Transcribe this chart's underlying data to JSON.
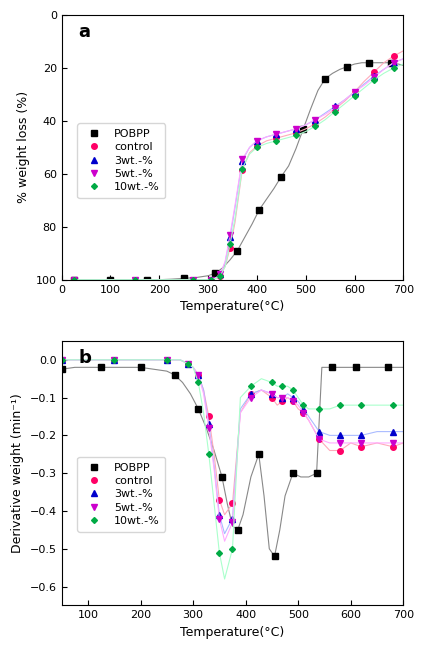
{
  "tga": {
    "title": "a",
    "xlabel": "Temperature(°C)",
    "ylabel": "% weight loss (%)",
    "xlim": [
      0,
      700
    ],
    "ylim": [
      100,
      0
    ],
    "yticks": [
      0,
      20,
      40,
      60,
      80,
      100
    ],
    "xticks": [
      0,
      100,
      200,
      300,
      400,
      500,
      600,
      700
    ],
    "series": {
      "POBPP": {
        "color": "#888888",
        "mcolor": "#000000",
        "marker": "s",
        "markersize": 4,
        "linewidth": 0.8,
        "temp": [
          25,
          50,
          75,
          100,
          125,
          150,
          175,
          200,
          225,
          250,
          275,
          300,
          315,
          330,
          345,
          360,
          375,
          390,
          405,
          420,
          435,
          450,
          465,
          480,
          495,
          510,
          525,
          540,
          555,
          570,
          585,
          600,
          615,
          630,
          645,
          660,
          675,
          690,
          700
        ],
        "weight": [
          100,
          100,
          100,
          100,
          100,
          100,
          100,
          100,
          99.8,
          99.5,
          99.2,
          98.5,
          97.5,
          95.5,
          92.5,
          89.0,
          84.0,
          79.0,
          73.5,
          69.5,
          65.5,
          61.0,
          57.0,
          50.5,
          43.0,
          35.5,
          28.5,
          24.0,
          22.0,
          20.5,
          19.5,
          18.5,
          18.0,
          18.0,
          18.0,
          18.0,
          18.0,
          18.5,
          19.0
        ]
      },
      "control": {
        "color": "#ffaabb",
        "mcolor": "#ff0066",
        "marker": "o",
        "markersize": 4,
        "linewidth": 0.8,
        "temp": [
          25,
          75,
          150,
          225,
          270,
          290,
          305,
          315,
          325,
          335,
          345,
          355,
          370,
          385,
          400,
          420,
          440,
          460,
          480,
          500,
          520,
          540,
          560,
          580,
          600,
          620,
          640,
          660,
          680,
          700
        ],
        "weight": [
          100,
          100,
          100,
          100,
          100,
          100,
          100,
          99.5,
          98.5,
          95.0,
          88.0,
          78.5,
          58.5,
          52.0,
          49.5,
          47.5,
          46.5,
          45.5,
          44.5,
          43.0,
          41.0,
          38.5,
          35.5,
          32.5,
          29.0,
          25.0,
          21.5,
          18.0,
          15.5,
          13.5
        ]
      },
      "3wt.-%": {
        "color": "#aabbff",
        "mcolor": "#0000cc",
        "marker": "^",
        "markersize": 4,
        "linewidth": 0.8,
        "temp": [
          25,
          75,
          150,
          225,
          270,
          290,
          305,
          315,
          325,
          335,
          345,
          355,
          370,
          385,
          400,
          420,
          440,
          460,
          480,
          500,
          520,
          540,
          560,
          580,
          600,
          620,
          640,
          660,
          680,
          700
        ],
        "weight": [
          100,
          100,
          100,
          100,
          100,
          100,
          100,
          99.5,
          98.0,
          93.5,
          84.0,
          73.0,
          55.0,
          50.0,
          47.5,
          46.0,
          45.0,
          44.0,
          43.0,
          41.5,
          39.5,
          37.0,
          34.5,
          32.0,
          29.0,
          26.0,
          23.0,
          20.5,
          18.0,
          16.5
        ]
      },
      "5wt.-%": {
        "color": "#ffaaff",
        "mcolor": "#cc00cc",
        "marker": "v",
        "markersize": 4,
        "linewidth": 0.8,
        "temp": [
          25,
          75,
          150,
          225,
          270,
          290,
          305,
          315,
          325,
          335,
          345,
          355,
          370,
          385,
          400,
          420,
          440,
          460,
          480,
          500,
          520,
          540,
          560,
          580,
          600,
          620,
          640,
          660,
          680,
          700
        ],
        "weight": [
          100,
          100,
          100,
          100,
          100,
          100,
          100,
          99.5,
          98.0,
          93.0,
          83.0,
          72.0,
          54.5,
          50.0,
          47.5,
          46.0,
          45.0,
          44.0,
          43.0,
          41.5,
          39.5,
          37.5,
          35.0,
          32.0,
          29.0,
          26.5,
          23.5,
          20.5,
          18.0,
          16.5
        ]
      },
      "10wt.-%": {
        "color": "#aaffcc",
        "mcolor": "#00aa44",
        "marker": "D",
        "markersize": 3,
        "linewidth": 0.8,
        "temp": [
          25,
          75,
          150,
          225,
          270,
          290,
          305,
          315,
          325,
          335,
          345,
          355,
          370,
          385,
          400,
          420,
          440,
          460,
          480,
          500,
          520,
          540,
          560,
          580,
          600,
          620,
          640,
          660,
          680,
          700
        ],
        "weight": [
          100,
          100,
          100,
          100,
          100,
          100,
          100,
          99.5,
          98.5,
          95.0,
          86.5,
          77.0,
          58.0,
          52.5,
          50.0,
          48.5,
          47.5,
          46.5,
          45.5,
          44.0,
          42.0,
          39.5,
          36.5,
          33.5,
          30.5,
          27.5,
          24.5,
          22.0,
          20.0,
          18.5
        ]
      }
    }
  },
  "dtg": {
    "title": "b",
    "xlabel": "Temperature(°C)",
    "ylabel": "Derivative weight (min⁻¹)",
    "xlim": [
      50,
      700
    ],
    "ylim": [
      -0.65,
      0.05
    ],
    "yticks": [
      0.0,
      -0.1,
      -0.2,
      -0.3,
      -0.4,
      -0.5,
      -0.6
    ],
    "xticks": [
      100,
      200,
      300,
      400,
      500,
      600,
      700
    ],
    "series": {
      "POBPP": {
        "color": "#888888",
        "mcolor": "#000000",
        "marker": "s",
        "markersize": 4,
        "linewidth": 0.8,
        "temp": [
          50,
          75,
          100,
          125,
          150,
          175,
          200,
          225,
          250,
          265,
          280,
          295,
          310,
          325,
          340,
          355,
          365,
          375,
          385,
          395,
          410,
          425,
          435,
          445,
          455,
          465,
          475,
          490,
          505,
          520,
          535,
          545,
          555,
          565,
          575,
          590,
          610,
          630,
          650,
          670,
          690,
          700
        ],
        "dtg": [
          -0.025,
          -0.02,
          -0.02,
          -0.02,
          -0.02,
          -0.02,
          -0.02,
          -0.025,
          -0.03,
          -0.04,
          -0.06,
          -0.09,
          -0.13,
          -0.18,
          -0.24,
          -0.31,
          -0.38,
          -0.44,
          -0.45,
          -0.41,
          -0.31,
          -0.25,
          -0.36,
          -0.5,
          -0.52,
          -0.45,
          -0.36,
          -0.3,
          -0.31,
          -0.31,
          -0.3,
          -0.02,
          -0.02,
          -0.02,
          -0.02,
          -0.02,
          -0.02,
          -0.02,
          -0.02,
          -0.02,
          -0.02,
          -0.02
        ]
      },
      "control": {
        "color": "#ffaabb",
        "mcolor": "#ff0066",
        "marker": "o",
        "markersize": 4,
        "linewidth": 0.8,
        "temp": [
          50,
          100,
          150,
          200,
          250,
          275,
          290,
          300,
          310,
          320,
          330,
          340,
          350,
          360,
          375,
          390,
          410,
          430,
          450,
          460,
          470,
          480,
          490,
          500,
          510,
          520,
          540,
          560,
          580,
          600,
          620,
          650,
          680,
          700
        ],
        "dtg": [
          0.0,
          0.0,
          0.0,
          0.0,
          0.0,
          0.0,
          -0.01,
          -0.02,
          -0.04,
          -0.08,
          -0.15,
          -0.25,
          -0.37,
          -0.41,
          -0.38,
          -0.14,
          -0.09,
          -0.08,
          -0.1,
          -0.12,
          -0.11,
          -0.1,
          -0.11,
          -0.13,
          -0.14,
          -0.16,
          -0.21,
          -0.24,
          -0.24,
          -0.22,
          -0.23,
          -0.22,
          -0.23,
          -0.22
        ]
      },
      "3wt.-%": {
        "color": "#aabbff",
        "mcolor": "#0000cc",
        "marker": "^",
        "markersize": 4,
        "linewidth": 0.8,
        "temp": [
          50,
          100,
          150,
          200,
          250,
          275,
          290,
          300,
          310,
          320,
          330,
          340,
          350,
          360,
          375,
          390,
          410,
          430,
          450,
          460,
          470,
          480,
          490,
          500,
          510,
          520,
          540,
          560,
          580,
          600,
          620,
          650,
          680,
          700
        ],
        "dtg": [
          0.0,
          0.0,
          0.0,
          0.0,
          0.0,
          0.0,
          -0.01,
          -0.02,
          -0.04,
          -0.08,
          -0.17,
          -0.28,
          -0.41,
          -0.46,
          -0.42,
          -0.13,
          -0.09,
          -0.08,
          -0.09,
          -0.1,
          -0.1,
          -0.09,
          -0.1,
          -0.11,
          -0.13,
          -0.15,
          -0.19,
          -0.2,
          -0.2,
          -0.2,
          -0.2,
          -0.19,
          -0.19,
          -0.19
        ]
      },
      "5wt.-%": {
        "color": "#ffaaff",
        "mcolor": "#cc00cc",
        "marker": "v",
        "markersize": 4,
        "linewidth": 0.8,
        "temp": [
          50,
          100,
          150,
          200,
          250,
          275,
          290,
          300,
          310,
          320,
          330,
          340,
          350,
          360,
          375,
          390,
          410,
          430,
          450,
          460,
          470,
          480,
          490,
          500,
          510,
          520,
          540,
          560,
          580,
          600,
          620,
          650,
          680,
          700
        ],
        "dtg": [
          0.0,
          0.0,
          0.0,
          0.0,
          0.0,
          0.0,
          -0.01,
          -0.02,
          -0.04,
          -0.09,
          -0.18,
          -0.29,
          -0.42,
          -0.48,
          -0.43,
          -0.14,
          -0.1,
          -0.08,
          -0.09,
          -0.1,
          -0.1,
          -0.1,
          -0.11,
          -0.12,
          -0.14,
          -0.16,
          -0.21,
          -0.22,
          -0.22,
          -0.22,
          -0.22,
          -0.22,
          -0.22,
          -0.22
        ]
      },
      "10wt.-%": {
        "color": "#aaffcc",
        "mcolor": "#00aa44",
        "marker": "D",
        "markersize": 3,
        "linewidth": 0.8,
        "temp": [
          50,
          100,
          150,
          200,
          250,
          275,
          290,
          300,
          310,
          320,
          330,
          340,
          350,
          360,
          375,
          390,
          410,
          430,
          450,
          460,
          470,
          480,
          490,
          500,
          510,
          520,
          540,
          560,
          580,
          600,
          620,
          650,
          680,
          700
        ],
        "dtg": [
          0.0,
          0.0,
          0.0,
          0.0,
          0.0,
          0.0,
          -0.01,
          -0.02,
          -0.06,
          -0.14,
          -0.25,
          -0.38,
          -0.51,
          -0.58,
          -0.5,
          -0.1,
          -0.07,
          -0.05,
          -0.06,
          -0.07,
          -0.07,
          -0.07,
          -0.08,
          -0.1,
          -0.12,
          -0.13,
          -0.13,
          -0.13,
          -0.12,
          -0.12,
          -0.12,
          -0.12,
          -0.12,
          -0.12
        ]
      }
    }
  }
}
